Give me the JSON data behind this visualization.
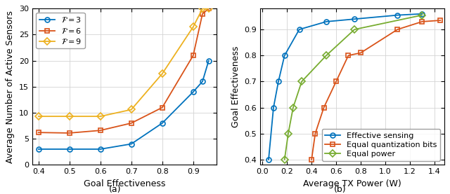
{
  "plot_a": {
    "xlabel": "Goal Effectiveness",
    "ylabel": "Average Number of Active Sensors",
    "title": "(a)",
    "xlim": [
      0.38,
      0.975
    ],
    "ylim": [
      0,
      30
    ],
    "xticks": [
      0.4,
      0.5,
      0.6,
      0.7,
      0.8,
      0.9
    ],
    "yticks": [
      0,
      5,
      10,
      15,
      20,
      25,
      30
    ],
    "series": [
      {
        "label": "$\\mathcal{F} = 3$",
        "color": "#0072BD",
        "marker": "o",
        "x": [
          0.4,
          0.5,
          0.6,
          0.7,
          0.8,
          0.9,
          0.93,
          0.95
        ],
        "y": [
          3.0,
          3.0,
          3.0,
          4.0,
          8.0,
          14.0,
          16.0,
          20.0
        ]
      },
      {
        "label": "$\\mathcal{F} = 6$",
        "color": "#D95319",
        "marker": "s",
        "x": [
          0.4,
          0.5,
          0.6,
          0.7,
          0.8,
          0.9,
          0.93,
          0.95
        ],
        "y": [
          6.2,
          6.1,
          6.6,
          8.0,
          11.0,
          21.0,
          29.0,
          30.0
        ]
      },
      {
        "label": "$\\mathcal{F} = 9$",
        "color": "#EDB120",
        "marker": "D",
        "x": [
          0.4,
          0.5,
          0.6,
          0.7,
          0.8,
          0.9,
          0.93,
          0.95
        ],
        "y": [
          9.3,
          9.3,
          9.3,
          10.6,
          17.5,
          26.5,
          30.0,
          30.0
        ]
      }
    ]
  },
  "plot_b": {
    "xlabel": "Average TX Power (W)",
    "ylabel": "Goal Effectiveness",
    "title": "(b)",
    "xlim": [
      -0.02,
      1.48
    ],
    "ylim": [
      0.38,
      0.98
    ],
    "xticks": [
      0,
      0.2,
      0.4,
      0.6,
      0.8,
      1.0,
      1.2,
      1.4
    ],
    "yticks": [
      0.4,
      0.5,
      0.6,
      0.7,
      0.8,
      0.9
    ],
    "series": [
      {
        "label": "Effective sensing",
        "color": "#0072BD",
        "marker": "o",
        "x": [
          0.05,
          0.09,
          0.13,
          0.18,
          0.3,
          0.52,
          0.75,
          1.1,
          1.3
        ],
        "y": [
          0.4,
          0.6,
          0.7,
          0.8,
          0.9,
          0.93,
          0.94,
          0.955,
          0.96
        ]
      },
      {
        "label": "Equal quantization bits",
        "color": "#D95319",
        "marker": "s",
        "x": [
          0.4,
          0.43,
          0.5,
          0.6,
          0.7,
          0.8,
          1.1,
          1.3,
          1.45
        ],
        "y": [
          0.4,
          0.5,
          0.6,
          0.7,
          0.8,
          0.81,
          0.9,
          0.93,
          0.935
        ]
      },
      {
        "label": "Equal power",
        "color": "#77AC30",
        "marker": "D",
        "x": [
          0.18,
          0.21,
          0.25,
          0.32,
          0.52,
          0.75,
          1.3
        ],
        "y": [
          0.4,
          0.5,
          0.6,
          0.7,
          0.8,
          0.9,
          0.955
        ]
      }
    ]
  },
  "fig_width": 6.4,
  "fig_height": 2.77,
  "grid_color": "#D3D3D3",
  "spine_color": "#000000",
  "tick_labelsize": 8,
  "axis_labelsize": 9,
  "legend_fontsize": 8,
  "linewidth": 1.3,
  "markersize": 5
}
